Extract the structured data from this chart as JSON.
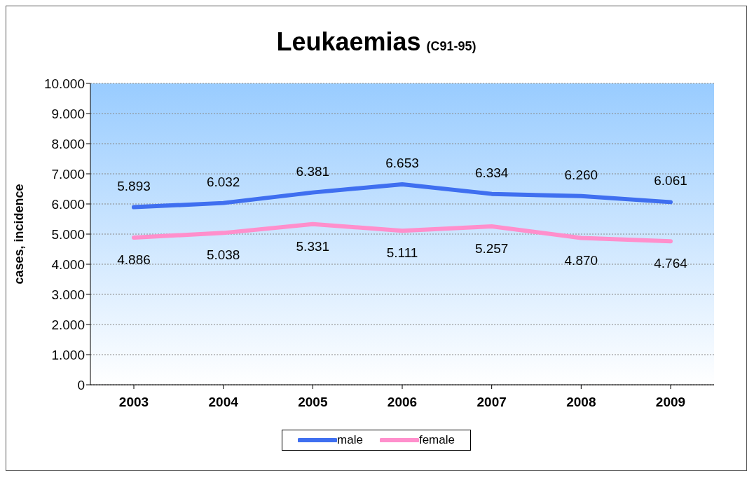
{
  "chart_data": {
    "type": "line",
    "title": "Leukaemias",
    "subtitle": "(C91-95)",
    "ylabel": "cases, incidence",
    "categories": [
      "2003",
      "2004",
      "2005",
      "2006",
      "2007",
      "2008",
      "2009"
    ],
    "series": [
      {
        "name": "male",
        "color": "#3f6ff0",
        "values": [
          5893,
          6032,
          6381,
          6653,
          6334,
          6260,
          6061
        ],
        "value_labels": [
          "5.893",
          "6.032",
          "6.381",
          "6.653",
          "6.334",
          "6.260",
          "6.061"
        ]
      },
      {
        "name": "female",
        "color": "#ff8fcc",
        "values": [
          4886,
          5038,
          5331,
          5111,
          5257,
          4870,
          4764
        ],
        "value_labels": [
          "4.886",
          "5.038",
          "5.331",
          "5.111",
          "5.257",
          "4.870",
          "4.764"
        ]
      }
    ],
    "ylim": [
      0,
      10000
    ],
    "yticks": [
      {
        "value": 0,
        "label": "0"
      },
      {
        "value": 1000,
        "label": "1.000"
      },
      {
        "value": 2000,
        "label": "2.000"
      },
      {
        "value": 3000,
        "label": "3.000"
      },
      {
        "value": 4000,
        "label": "4.000"
      },
      {
        "value": 5000,
        "label": "5.000"
      },
      {
        "value": 6000,
        "label": "6.000"
      },
      {
        "value": 7000,
        "label": "7.000"
      },
      {
        "value": 8000,
        "label": "8.000"
      },
      {
        "value": 9000,
        "label": "9.000"
      },
      {
        "value": 10000,
        "label": "10.000"
      }
    ],
    "grid": "y",
    "legend": "bottom",
    "marker": "none",
    "line_style": "solid"
  }
}
